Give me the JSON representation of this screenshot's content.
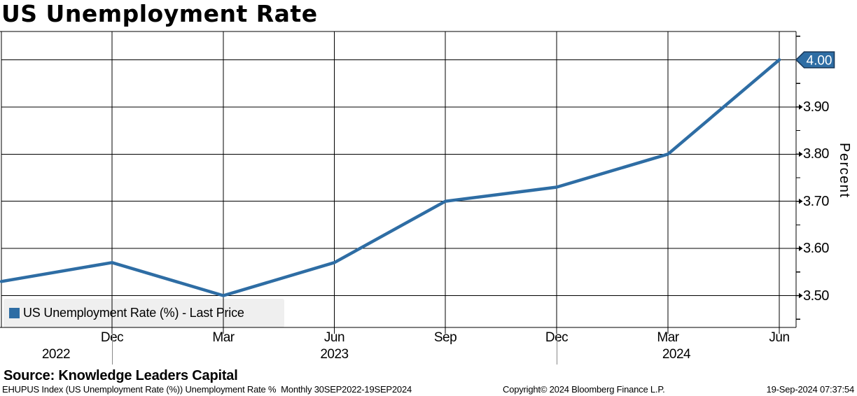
{
  "title": "US Unemployment Rate",
  "legend": {
    "marker_color": "#2e6da4",
    "label": "US Unemployment Rate (%) - Last Price"
  },
  "y_axis": {
    "label": "Percent",
    "ticks": [
      "3.50",
      "3.60",
      "3.70",
      "3.80",
      "3.90"
    ],
    "last_price_badge": "4.00"
  },
  "x_axis": {
    "month_ticks": [
      "Dec",
      "Mar",
      "Jun",
      "Sep",
      "Dec",
      "Mar",
      "Jun"
    ],
    "year_labels": [
      "2022",
      "2023",
      "2024"
    ]
  },
  "footer": {
    "source": "Source: Knowledge Leaders Capital",
    "descriptor": "EHUPUS Index (US Unemployment Rate (%)) Unemployment Rate %  Monthly 30SEP2022-19SEP2024",
    "copyright": "Copyright© 2024 Bloomberg Finance L.P.",
    "timestamp": "19-Sep-2024 07:37:54"
  },
  "chart_data": {
    "type": "line",
    "title": "US Unemployment Rate",
    "series_name": "US Unemployment Rate (%) - Last Price",
    "x": [
      "Sep-2022",
      "Dec-2022",
      "Mar-2023",
      "Jun-2023",
      "Sep-2023",
      "Dec-2023",
      "Mar-2024",
      "Jun-2024"
    ],
    "values": [
      3.53,
      3.57,
      3.5,
      3.57,
      3.7,
      3.73,
      3.8,
      4.0
    ],
    "last_price": 4.0,
    "xlabel": "",
    "ylabel": "Percent",
    "ylim": [
      3.43,
      4.07
    ],
    "yticks": [
      3.5,
      3.6,
      3.7,
      3.8,
      3.9,
      4.0
    ],
    "grid": true,
    "legend_position": "bottom-left",
    "line_color": "#2e6da4",
    "badge_fill": "#2e6da4",
    "badge_border": "#1a3a5c",
    "grid_color": "#000000",
    "period": "Monthly 30SEP2022-19SEP2024"
  }
}
